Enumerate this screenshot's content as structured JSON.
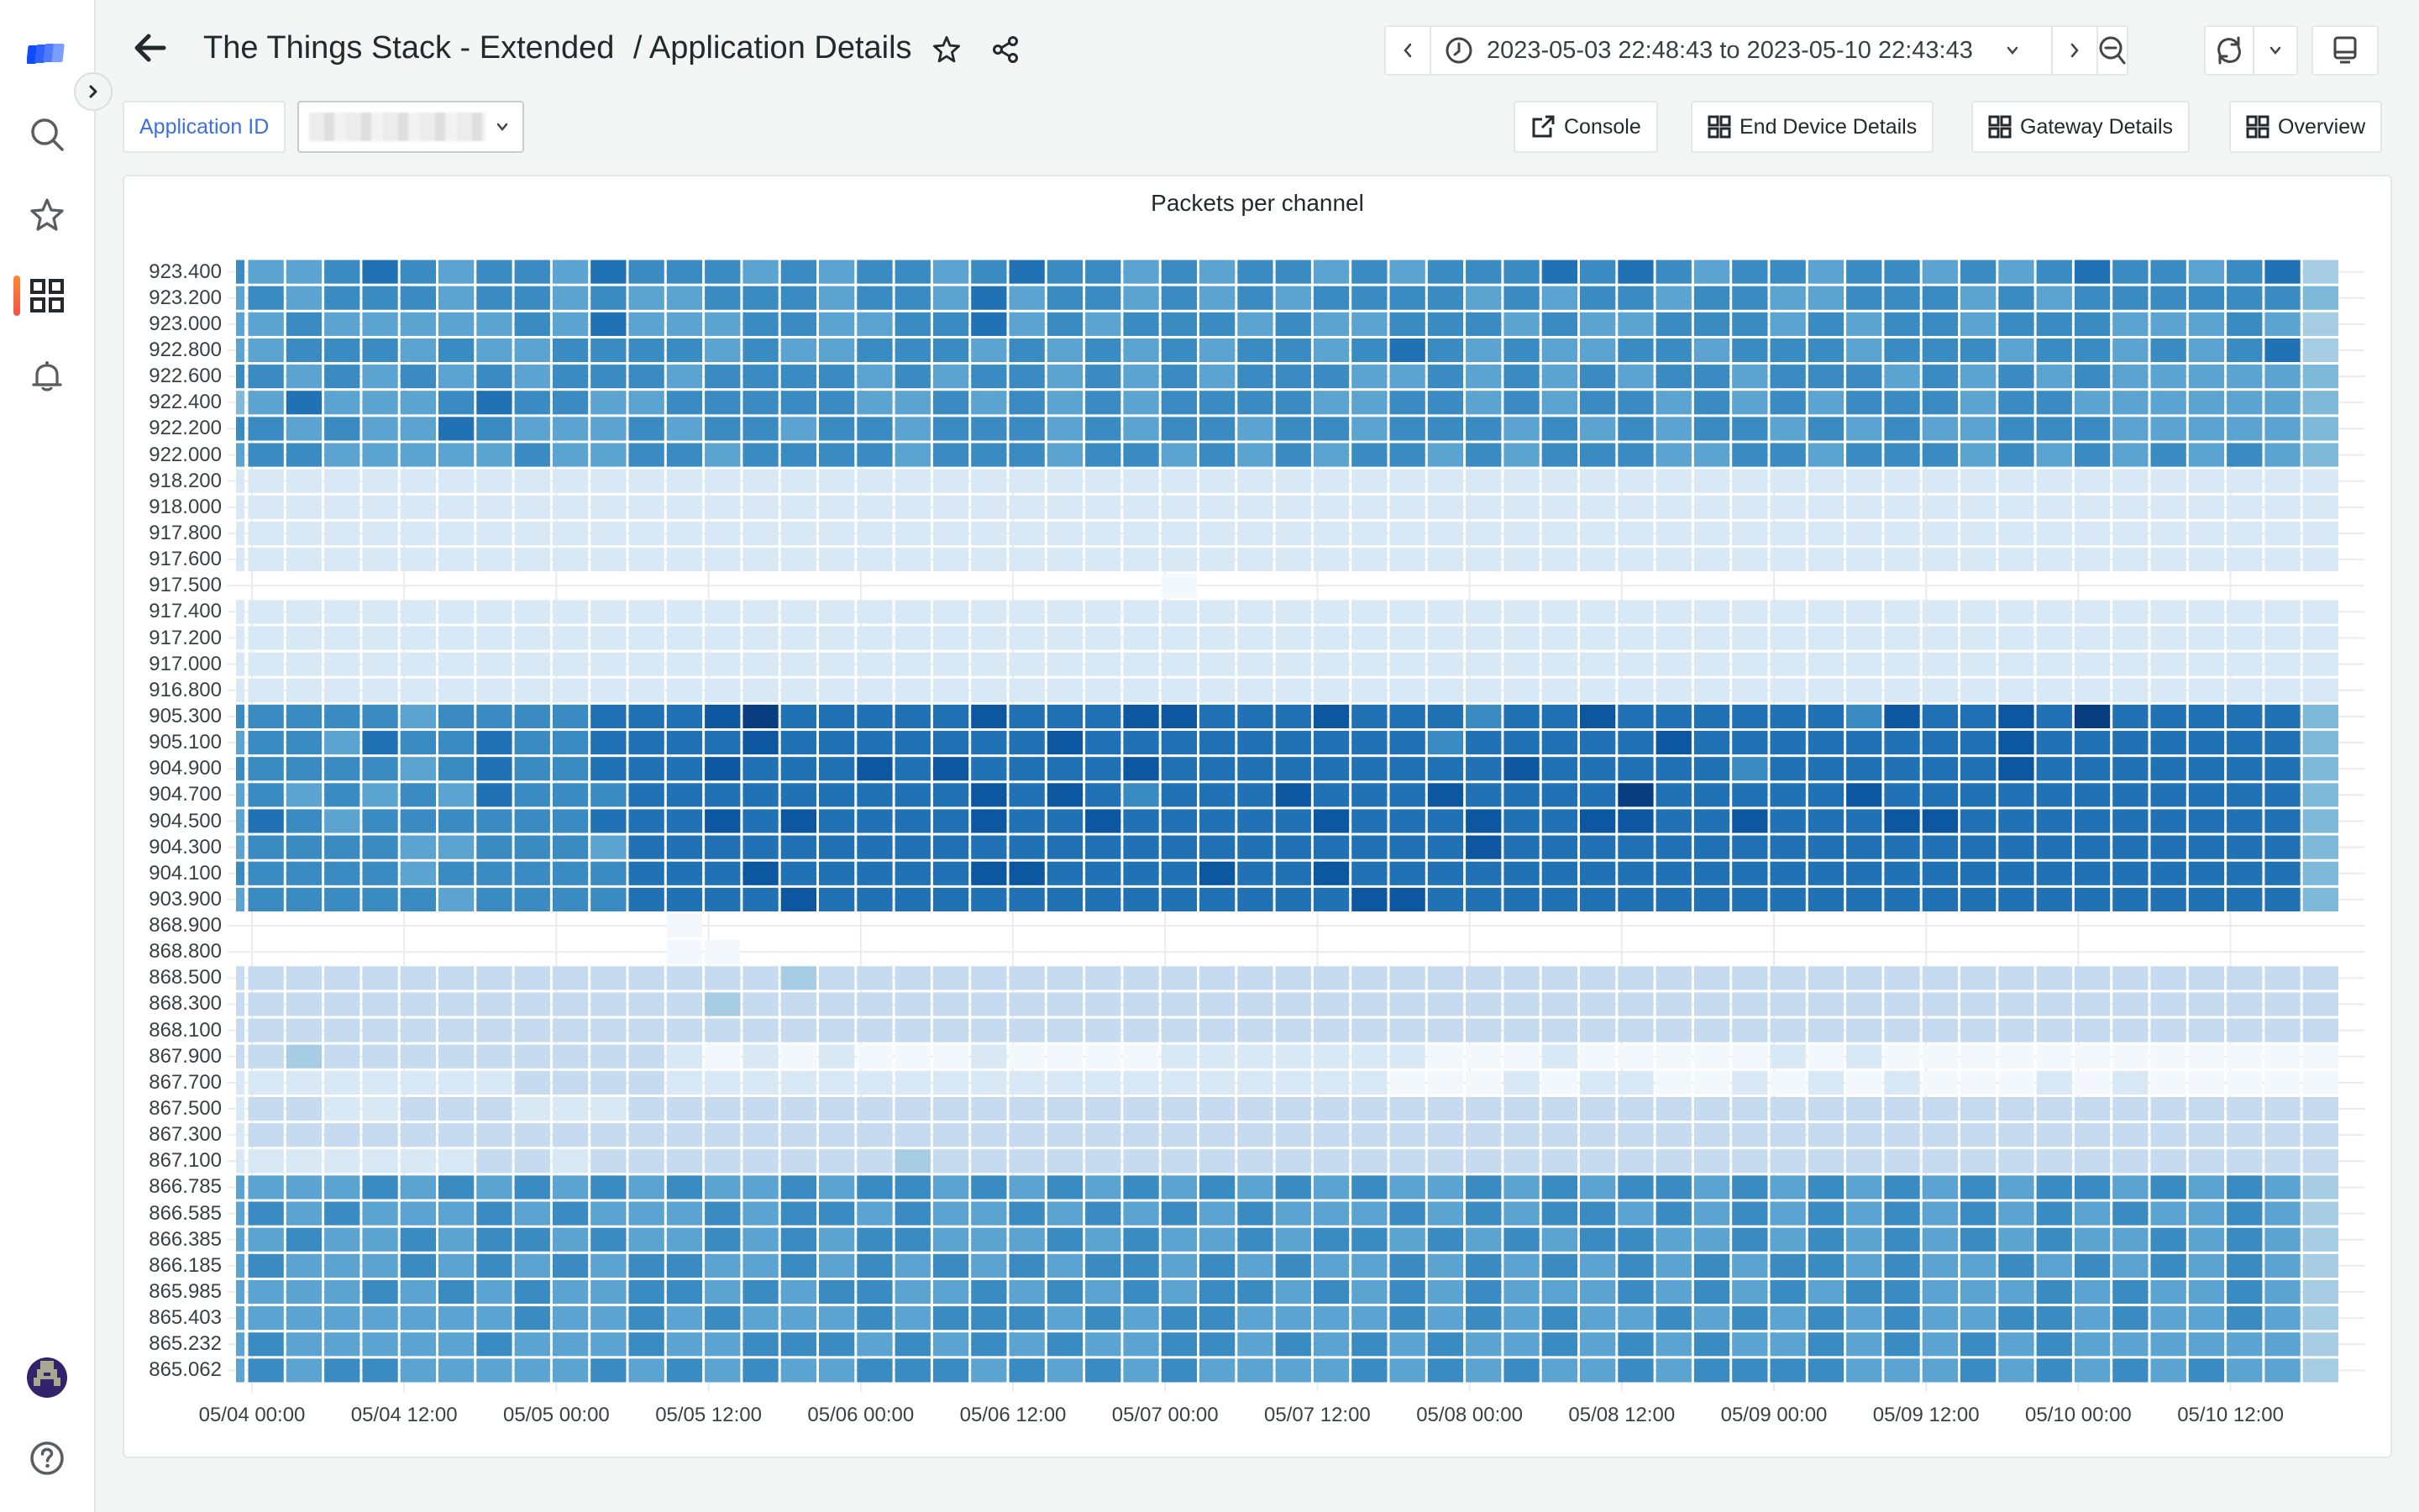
{
  "header": {
    "title": "The Things Stack - Extended",
    "subtitle": "/ Application Details"
  },
  "time_picker": {
    "range": "2023-05-03 22:48:43 to 2023-05-10 22:43:43"
  },
  "variables": {
    "application_id_label": "Application ID"
  },
  "links": [
    {
      "label": "Console",
      "icon": "external-link-icon"
    },
    {
      "label": "End Device Details",
      "icon": "dashboard-grid-icon"
    },
    {
      "label": "Gateway Details",
      "icon": "dashboard-grid-icon"
    },
    {
      "label": "Overview",
      "icon": "dashboard-grid-icon"
    }
  ],
  "sidebar": {
    "items": [
      {
        "icon": "logo-icon"
      },
      {
        "icon": "search-icon"
      },
      {
        "icon": "star-icon"
      },
      {
        "icon": "dashboards-icon",
        "active": true
      },
      {
        "icon": "bell-icon"
      },
      {
        "icon": "avatar"
      },
      {
        "icon": "help-icon"
      }
    ]
  },
  "colors": {
    "accent": "#3d71d9",
    "active_indicator": "#f5524a",
    "heat_low": "#f7fbff",
    "heat_high": "#08306b"
  },
  "chart_data": {
    "type": "heatmap",
    "title": "Packets per channel",
    "xlabel": "",
    "ylabel": "",
    "x_ticks": [
      "05/04 00:00",
      "05/04 12:00",
      "05/05 00:00",
      "05/05 12:00",
      "05/06 00:00",
      "05/06 12:00",
      "05/07 00:00",
      "05/07 12:00",
      "05/08 00:00",
      "05/08 12:00",
      "05/09 00:00",
      "05/09 12:00",
      "05/10 00:00",
      "05/10 12:00"
    ],
    "bucket": "3h",
    "value_scale": "relative intensity 0-9, '.' = no data",
    "rows": [
      {
        "label": "923.400",
        "values": "65567656657666565665676656566565666767656656656567665673"
      },
      {
        "label": "923.200",
        "values": "56566656656556665665756656565666656566566556665656666664"
      },
      {
        "label": "923.000",
        "values": "55655555657555665566756566656556665655666565665666555653"
      },
      {
        "label": "922.800",
        "values": "55666565566665655666565656566567656556656665666566565673"
      },
      {
        "label": "922.600",
        "values": "66565656566656666565665656566655656565665666565656555554"
      },
      {
        "label": "922.400",
        "values": "45755567665566666556565656666556656566565656665665555554"
      },
      {
        "label": "922.200",
        "values": "66565576555656656656665656656656665656566565655666555554"
      },
      {
        "label": "922.000",
        "values": "56655555655665666656665665656566565666556656665656565654"
      },
      {
        "label": "918.200",
        "values": "11111111111111111111111111111111111111111111111111111111"
      },
      {
        "label": "918.000",
        "values": "11111111111111111111111111111111111111111111111111111111"
      },
      {
        "label": "917.800",
        "values": "11111111111111111111111111111111111111111111111111111111"
      },
      {
        "label": "917.600",
        "values": "11111111111111111111111111111111111111111111111111111111"
      },
      {
        "label": "917.500",
        "values": ".........................0.............................."
      },
      {
        "label": "917.400",
        "values": "11111111111111111111111111111111111111111111111111111111"
      },
      {
        "label": "917.200",
        "values": "11111111111111111111111111111111111111111111111111111111"
      },
      {
        "label": "917.000",
        "values": "11111111111111111111111111111111111111111111111111111111"
      },
      {
        "label": "916.800",
        "values": "11111111111111111111111111111111111111111111111111111111"
      },
      {
        "label": "905.300",
        "values": "66666566667778977777877788777877767787777776877879777774"
      },
      {
        "label": "905.100",
        "values": "56657667667777877777778777777777677777877777777877777774"
      },
      {
        "label": "904.900",
        "values": "66666567667778777878777787777777778777776777777877777774"
      },
      {
        "label": "904.700",
        "values": "56565657666777777777878767778777877779777778777777777774"
      },
      {
        "label": "904.500",
        "values": "57656666667778787777877877777877787788778777887777777774"
      },
      {
        "label": "904.300",
        "values": "56666556665777777777777777777777787777777777777777777774"
      },
      {
        "label": "904.100",
        "values": "66666566666777877777887777877877777777777777777777777774"
      },
      {
        "label": "903.900",
        "values": "56666656666777787777777777777788777777777777777777777774"
      },
      {
        "label": "868.900",
        "values": "............0..........................................."
      },
      {
        "label": "868.800",
        "values": "............00.........................................."
      },
      {
        "label": "868.500",
        "values": "22222222222222232222222222222222222222222222222222222222"
      },
      {
        "label": "868.300",
        "values": "22222222222223222222222222222222222222222222222222222222"
      },
      {
        "label": "868.100",
        "values": "22222222222222222222222222222222222222222222222222222222"
      },
      {
        "label": "867.900",
        "values": "22322222222210101000100001111111000100000101000000000000"
      },
      {
        "label": "867.700",
        "values": "11111111222211111111111111111110001011001010100010100000"
      },
      {
        "label": "867.500",
        "values": "12211222111222222222222222222222222222222222222222222222"
      },
      {
        "label": "867.300",
        "values": "12222222222222222222222222222222222222222222222222222222"
      },
      {
        "label": "867.100",
        "values": "11111112212222222232222222222222222222222222222222222222"
      },
      {
        "label": "866.785",
        "values": "55556565656565565665656565656565565656656565656566565653"
      },
      {
        "label": "866.585",
        "values": "56565556565556566565565656565556565665656565656565655653"
      },
      {
        "label": "866.385",
        "values": "55655656656556565665556565565665656566556565656565565653"
      },
      {
        "label": "866.185",
        "values": "56555656565665565656565665656556565656565665655656565653"
      },
      {
        "label": "865.985",
        "values": "55556565655665656655656565665656565556565656655565655653"
      },
      {
        "label": "865.403",
        "values": "55555555655656555656665656655556565655656565655665655653"
      },
      {
        "label": "865.232",
        "values": "56555556555655666565656556656565655656565565656565555553"
      },
      {
        "label": "865.062",
        "values": "56566555556565655666565656555565656556566665556565656553"
      }
    ]
  }
}
